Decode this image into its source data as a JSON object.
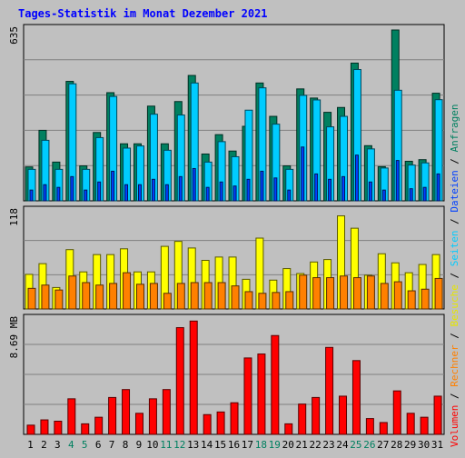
{
  "chart_data": {
    "type": "bar",
    "title": "Tages-Statistik im Monat Dezember 2021",
    "categories": [
      "1",
      "2",
      "3",
      "4",
      "5",
      "6",
      "7",
      "8",
      "9",
      "10",
      "11",
      "12",
      "13",
      "14",
      "15",
      "16",
      "17",
      "18",
      "19",
      "20",
      "21",
      "22",
      "23",
      "24",
      "25",
      "26",
      "27",
      "28",
      "29",
      "30",
      "31"
    ],
    "weekend_days": [
      "4",
      "5",
      "11",
      "12",
      "18",
      "19",
      "25",
      "26"
    ],
    "ylabel_parts": [
      {
        "text": "Volumen",
        "color": "#ff0000"
      },
      {
        "text": " / ",
        "color": "#000000"
      },
      {
        "text": "Rechner",
        "color": "#ff8000"
      },
      {
        "text": " / ",
        "color": "#000000"
      },
      {
        "text": "Besuche",
        "color": "#e6e600"
      },
      {
        "text": " / ",
        "color": "#000000"
      },
      {
        "text": "Seiten",
        "color": "#00ccff"
      },
      {
        "text": " / ",
        "color": "#000000"
      },
      {
        "text": "Dateien",
        "color": "#0040ff"
      },
      {
        "text": " / ",
        "color": "#000000"
      },
      {
        "text": "Anfragen",
        "color": "#008060"
      }
    ],
    "panels": [
      {
        "max_label": "635",
        "ylim": [
          0,
          635
        ],
        "series": [
          {
            "name": "Anfragen",
            "color": "#008060",
            "values": [
              126,
              262,
              144,
              444,
              130,
              254,
              402,
              212,
              212,
              352,
              212,
              369,
              466,
              174,
              246,
              185,
              277,
              438,
              314,
              130,
              416,
              382,
              329,
              347,
              512,
              205,
              127,
              635,
              147,
              153,
              400
            ]
          },
          {
            "name": "Seiten",
            "color": "#00ccff",
            "values": [
              117,
              225,
              117,
              435,
              117,
              235,
              388,
              196,
              204,
              322,
              188,
              319,
              438,
              144,
              220,
              164,
              337,
              420,
              285,
              117,
              392,
              375,
              275,
              314,
              488,
              193,
              122,
              411,
              133,
              141,
              376
            ]
          },
          {
            "name": "Dateien",
            "color": "#0040ff",
            "values": [
              40,
              60,
              50,
              90,
              40,
              70,
              110,
              60,
              60,
              80,
              60,
              90,
              120,
              50,
              70,
              55,
              80,
              110,
              85,
              40,
              200,
              100,
              80,
              90,
              170,
              70,
              40,
              150,
              45,
              50,
              100
            ]
          }
        ]
      },
      {
        "max_label": "118",
        "ylim": [
          0,
          118
        ],
        "series": [
          {
            "name": "Besuche",
            "color": "#ffff00",
            "values": [
              42,
              55,
              26,
              72,
              45,
              66,
              66,
              73,
              45,
              45,
              76,
              82,
              74,
              59,
              63,
              63,
              36,
              86,
              35,
              49,
              43,
              57,
              60,
              113,
              98,
              41,
              67,
              56,
              44,
              54,
              66
            ]
          },
          {
            "name": "Rechner",
            "color": "#ff8000",
            "values": [
              25,
              29,
              23,
              40,
              32,
              29,
              31,
              44,
              30,
              31,
              19,
              31,
              32,
              32,
              32,
              28,
              21,
              19,
              20,
              21,
              41,
              38,
              38,
              40,
              38,
              40,
              31,
              33,
              22,
              24,
              37
            ]
          }
        ]
      },
      {
        "max_label": "8.69 MB",
        "ylim": [
          0,
          8.69
        ],
        "series": [
          {
            "name": "Volumen",
            "color": "#ff0000",
            "values": [
              0.7,
              1.1,
              1.0,
              2.7,
              0.8,
              1.3,
              2.8,
              3.4,
              1.6,
              2.7,
              3.4,
              8.1,
              8.6,
              1.5,
              1.7,
              2.4,
              5.8,
              6.1,
              7.5,
              0.8,
              2.3,
              2.8,
              6.6,
              2.9,
              5.6,
              1.2,
              0.9,
              3.3,
              1.6,
              1.3,
              2.9
            ]
          }
        ]
      }
    ]
  }
}
